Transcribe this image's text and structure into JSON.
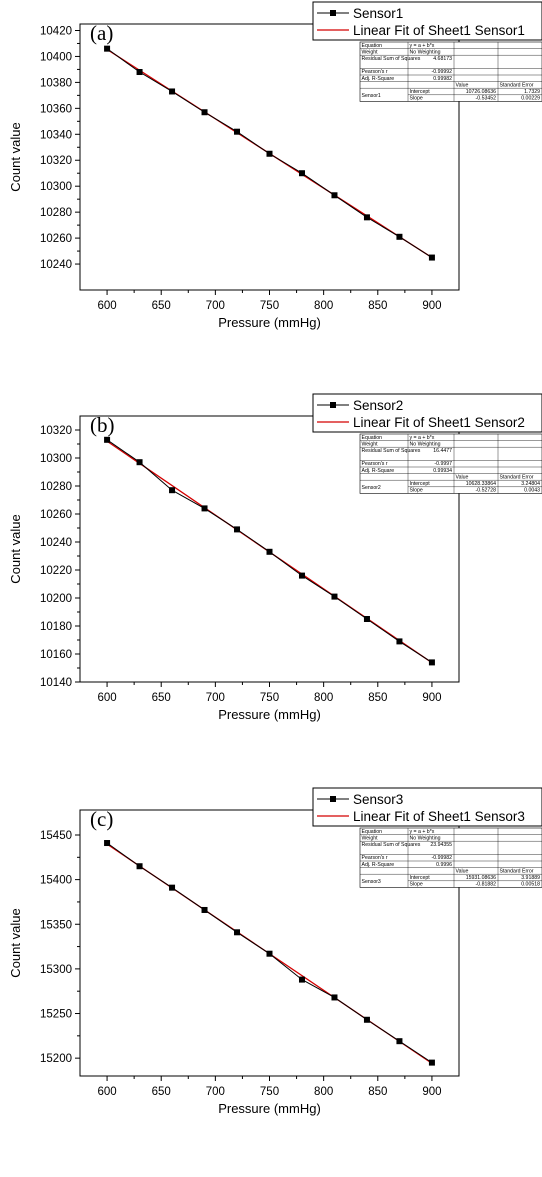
{
  "chart_data": [
    {
      "type": "line",
      "panel_label": "(a)",
      "xlabel": "Pressure (mmHg)",
      "ylabel": "Count value",
      "xlim": [
        575,
        925
      ],
      "ylim": [
        10220,
        10425
      ],
      "xticks": [
        600,
        650,
        700,
        750,
        800,
        850,
        900
      ],
      "yticks": [
        10240,
        10260,
        10280,
        10300,
        10320,
        10340,
        10360,
        10380,
        10400,
        10420
      ],
      "x": [
        600,
        630,
        660,
        690,
        720,
        750,
        780,
        810,
        840,
        870,
        900
      ],
      "series": [
        {
          "name": "Sensor1",
          "values": [
            10406,
            10388,
            10373,
            10357,
            10342,
            10325,
            10310,
            10293,
            10276,
            10261,
            10245
          ],
          "color": "#000000",
          "marker": "square"
        },
        {
          "name": "Linear Fit of Sheet1 Sensor1",
          "fit": {
            "intercept": 10726.08636,
            "slope": -0.53452
          },
          "color": "#d40000"
        }
      ],
      "legend_position": "top-right",
      "fit_table": {
        "rows": [
          [
            "Equation",
            "y = a + b*x"
          ],
          [
            "Weight",
            "No Weighting"
          ],
          [
            "Residual Sum of Squares",
            "4.68173"
          ],
          [
            "Pearson's r",
            "-0.99992"
          ],
          [
            "Adj. R-Square",
            "0.99982"
          ]
        ],
        "columns": [
          "",
          "",
          "Value",
          "Standard Error"
        ],
        "param_group": "Sensor1",
        "params": [
          [
            "Intercept",
            "10726.08636",
            "1.7329"
          ],
          [
            "Slope",
            "-0.53452",
            "0.00229"
          ]
        ]
      }
    },
    {
      "type": "line",
      "panel_label": "(b)",
      "xlabel": "Pressure (mmHg)",
      "ylabel": "Count value",
      "xlim": [
        575,
        925
      ],
      "ylim": [
        10140,
        10330
      ],
      "xticks": [
        600,
        650,
        700,
        750,
        800,
        850,
        900
      ],
      "yticks": [
        10140,
        10160,
        10180,
        10200,
        10220,
        10240,
        10260,
        10280,
        10300,
        10320
      ],
      "x": [
        600,
        630,
        660,
        690,
        720,
        750,
        780,
        810,
        840,
        870,
        900
      ],
      "series": [
        {
          "name": "Sensor2",
          "values": [
            10313,
            10297,
            10277,
            10264,
            10249,
            10233,
            10216,
            10201,
            10185,
            10169,
            10154
          ],
          "color": "#000000",
          "marker": "square"
        },
        {
          "name": "Linear Fit of Sheet1 Sensor2",
          "fit": {
            "intercept": 10628.33864,
            "slope": -0.52728
          },
          "color": "#d40000"
        }
      ],
      "legend_position": "top-right",
      "fit_table": {
        "rows": [
          [
            "Equation",
            "y = a + b*x"
          ],
          [
            "Weight",
            "No Weighting"
          ],
          [
            "Residual Sum of Squares",
            "16.4477"
          ],
          [
            "Pearson's r",
            "-0.9997"
          ],
          [
            "Adj. R-Square",
            "0.99934"
          ]
        ],
        "columns": [
          "",
          "",
          "Value",
          "Standard Error"
        ],
        "param_group": "Sensor2",
        "params": [
          [
            "Intercept",
            "10628.33864",
            "3.24804"
          ],
          [
            "Slope",
            "-0.52728",
            "0.0043"
          ]
        ]
      }
    },
    {
      "type": "line",
      "panel_label": "(c)",
      "xlabel": "Pressure (mmHg)",
      "ylabel": "Count value",
      "xlim": [
        575,
        925
      ],
      "ylim": [
        15180,
        15478
      ],
      "xticks": [
        600,
        650,
        700,
        750,
        800,
        850,
        900
      ],
      "yticks": [
        15200,
        15250,
        15300,
        15350,
        15400,
        15450
      ],
      "x": [
        600,
        630,
        660,
        690,
        720,
        750,
        780,
        810,
        840,
        870,
        900
      ],
      "series": [
        {
          "name": "Sensor3",
          "values": [
            15441,
            15415,
            15391,
            15366,
            15341,
            15317,
            15288,
            15268,
            15243,
            15219,
            15195
          ],
          "color": "#000000",
          "marker": "square"
        },
        {
          "name": "Linear Fit of Sheet1 Sensor3",
          "fit": {
            "intercept": 15931.08636,
            "slope": -0.81882
          },
          "color": "#d40000"
        }
      ],
      "legend_position": "top-right",
      "fit_table": {
        "rows": [
          [
            "Equation",
            "y = a + b*x"
          ],
          [
            "Weight",
            "No Weighting"
          ],
          [
            "Residual Sum of Squares",
            "23.94355"
          ],
          [
            "Pearson's r",
            "-0.99982"
          ],
          [
            "Adj. R-Square",
            "0.9996"
          ]
        ],
        "columns": [
          "",
          "",
          "Value",
          "Standard Error"
        ],
        "param_group": "Sensor3",
        "params": [
          [
            "Intercept",
            "15931.08636",
            "3.91889"
          ],
          [
            "Slope",
            "-0.81882",
            "0.00518"
          ]
        ]
      }
    }
  ]
}
